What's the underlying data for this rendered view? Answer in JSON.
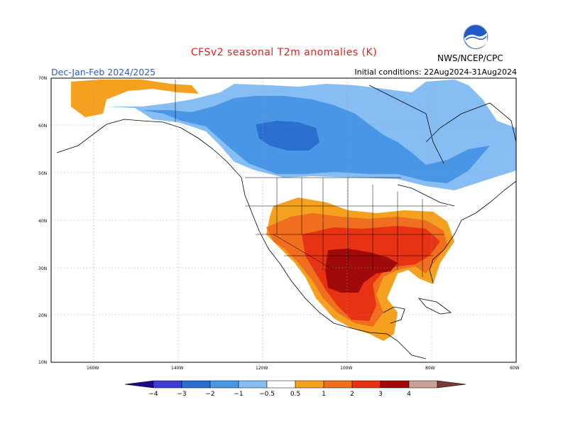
{
  "title": "CFSv2 seasonal T2m anomalies (K)",
  "season": "Dec-Jan-Feb 2024/2025",
  "initial_conditions": "Initial conditions: 22Aug2024-31Aug2024",
  "agency": "NWS/NCEP/CPC",
  "lat_labels": [
    "70N",
    "60N",
    "50N",
    "40N",
    "30N",
    "20N",
    "10N"
  ],
  "lon_labels": [
    "160W",
    "140W",
    "120W",
    "100W",
    "80W",
    "60W"
  ],
  "colorbar": {
    "labels": [
      "-4",
      "-3",
      "-2",
      "-1",
      "-0.5",
      "0.5",
      "1",
      "2",
      "3",
      "4"
    ],
    "colors": [
      "#1e0a8c",
      "#3c3cd0",
      "#2a6ed0",
      "#4a96e6",
      "#86bef4",
      "#ffffff",
      "#f5a01e",
      "#f06e1e",
      "#e83214",
      "#a00a0a",
      "#c8a096",
      "#7a3c32"
    ]
  },
  "colors": {
    "cold_dark": "#2a6ed0",
    "cold_mid": "#4a96e6",
    "cold_light": "#86bef4",
    "warm_light": "#f5a01e",
    "warm_mid": "#f06e1e",
    "warm_high": "#e83214",
    "warm_max": "#a00a0a"
  }
}
